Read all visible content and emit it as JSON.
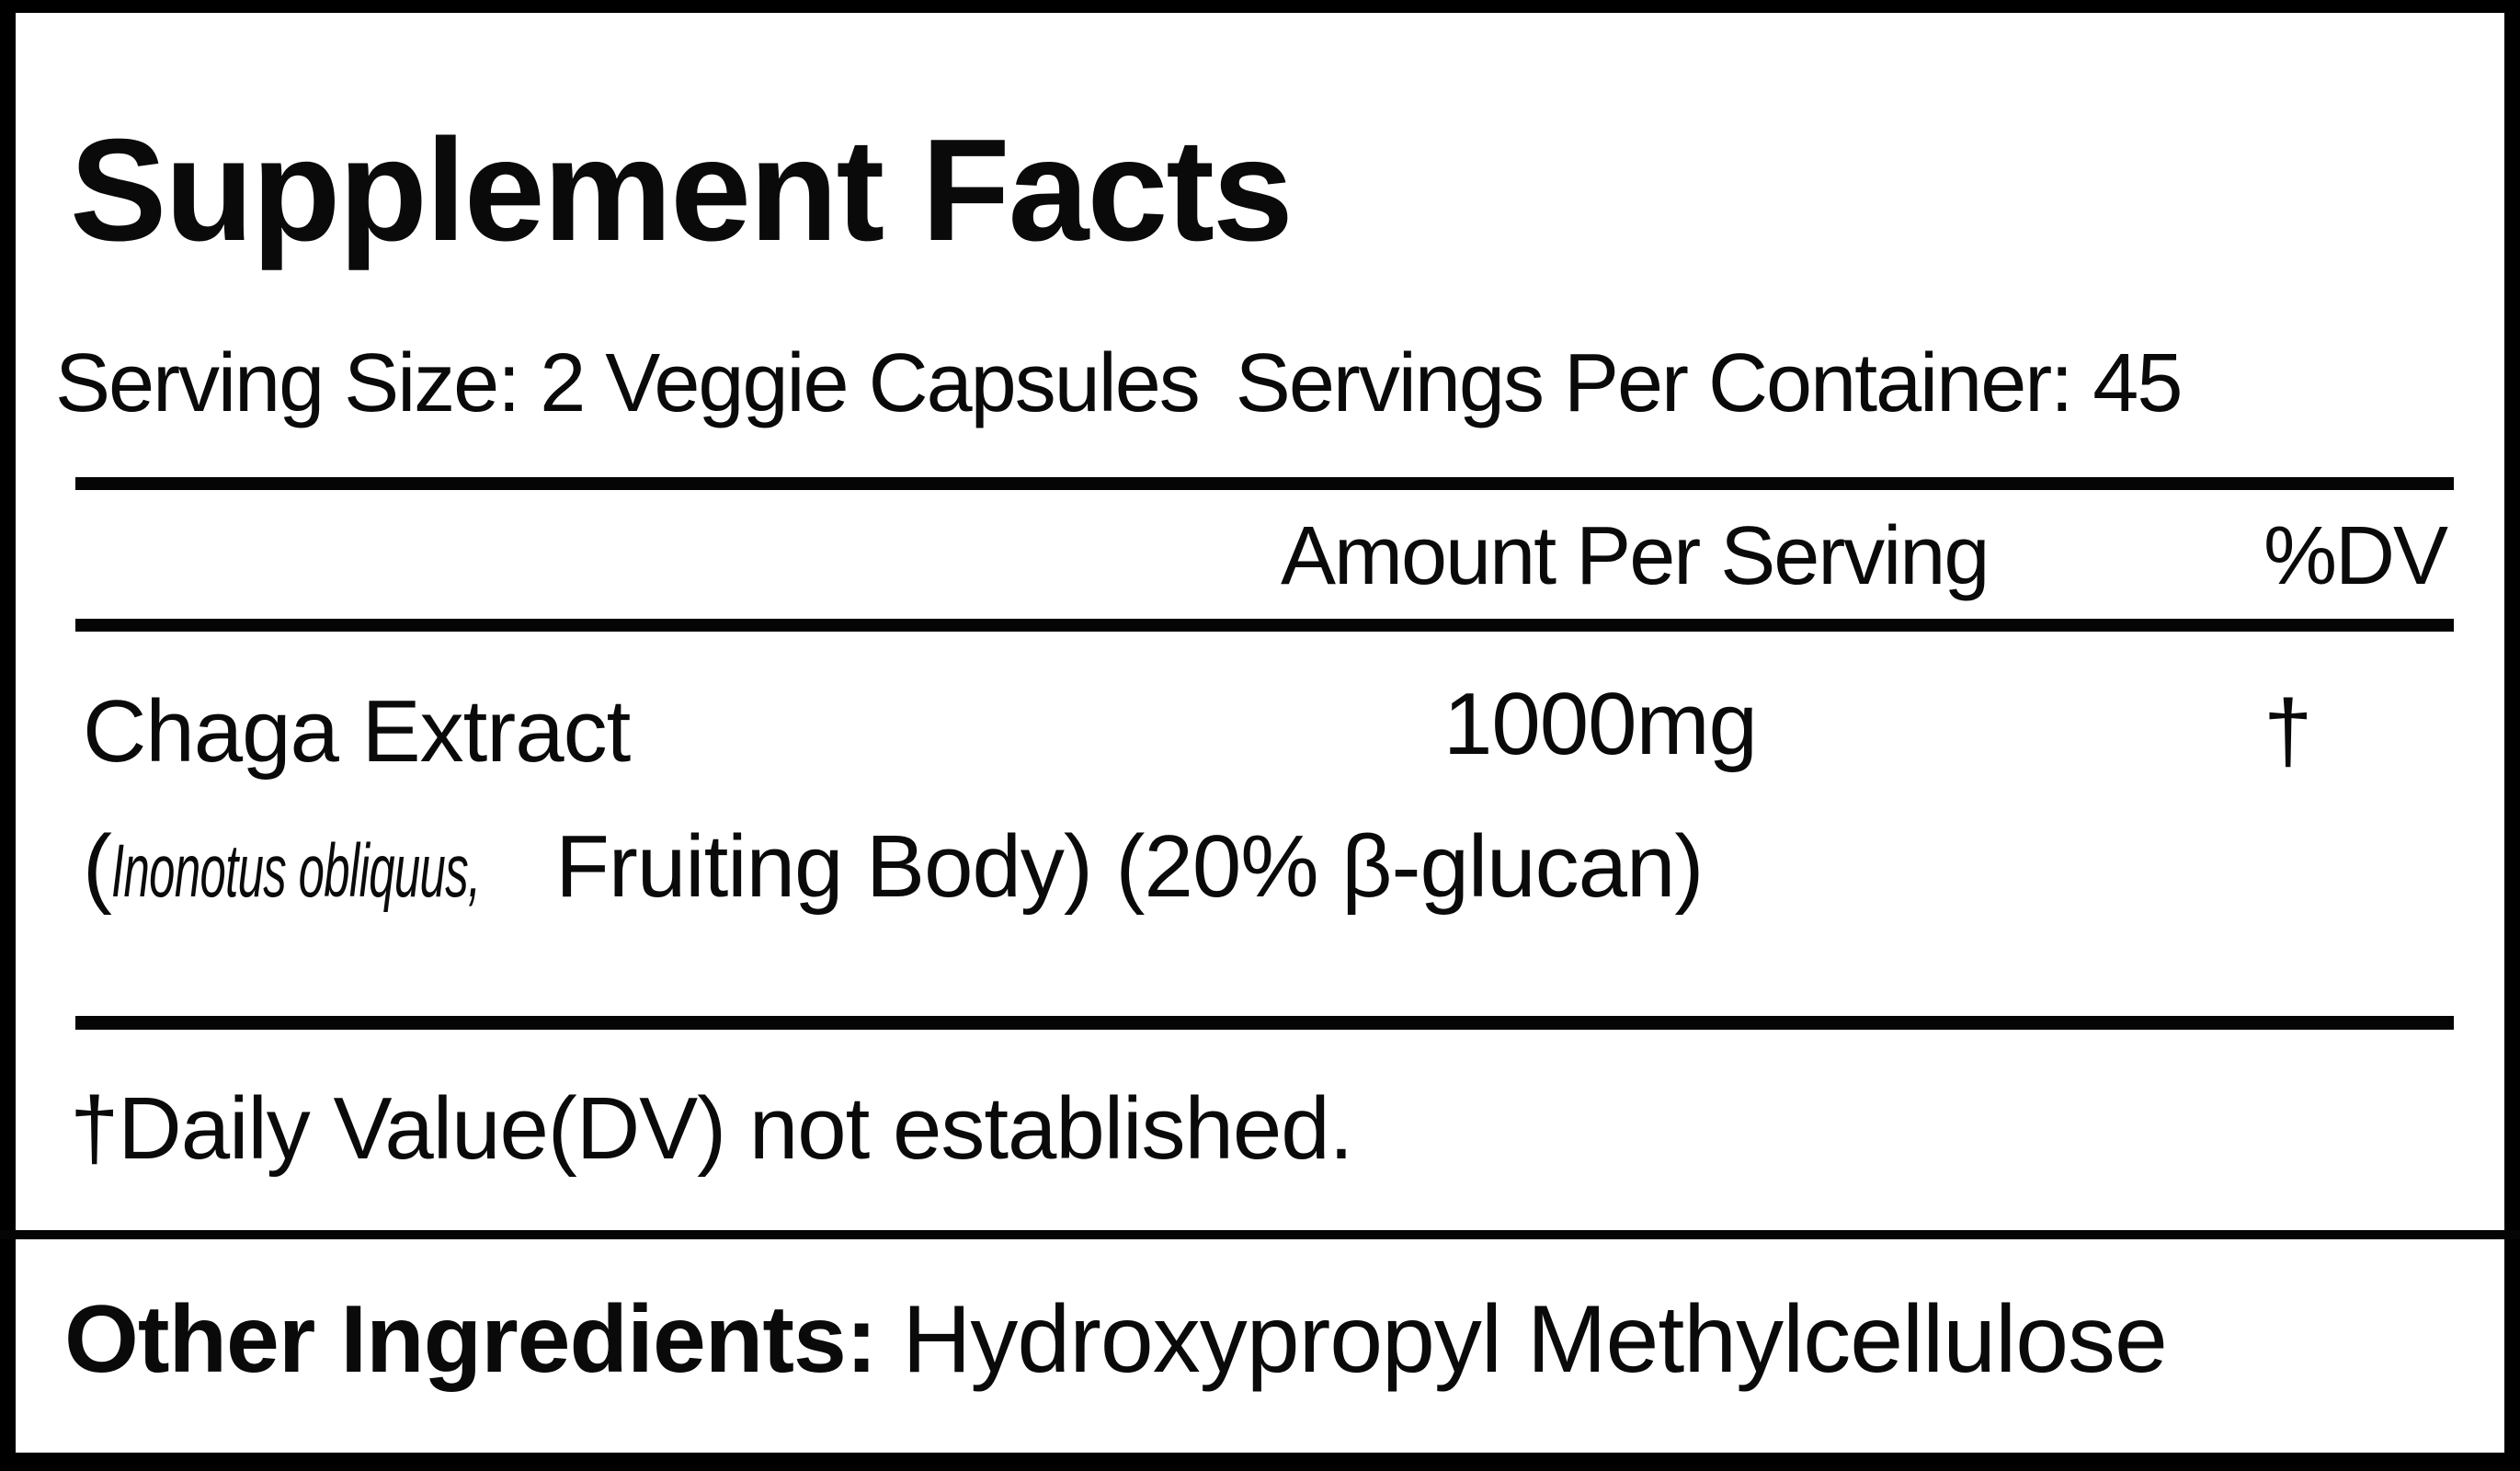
{
  "title": "Supplement Facts",
  "serving": {
    "size": "Serving Size: 2 Veggie Capsules",
    "per_container": "Servings Per Container: 45"
  },
  "table_header": {
    "amount": "Amount Per Serving",
    "dv": "%DV"
  },
  "ingredients": [
    {
      "name": "Chaga Extract",
      "amount": "1000mg",
      "dv": "†",
      "detail_open": "(",
      "scientific_name": "Inonotus obliquus,",
      "detail_rest": " Fruiting Body) (20% β-glucan)"
    }
  ],
  "footnote": "†Daily Value(DV) not established.",
  "other_ingredients": {
    "label": "Other Ingredients:",
    "value": "Hydroxypropyl Methylcellulose"
  }
}
